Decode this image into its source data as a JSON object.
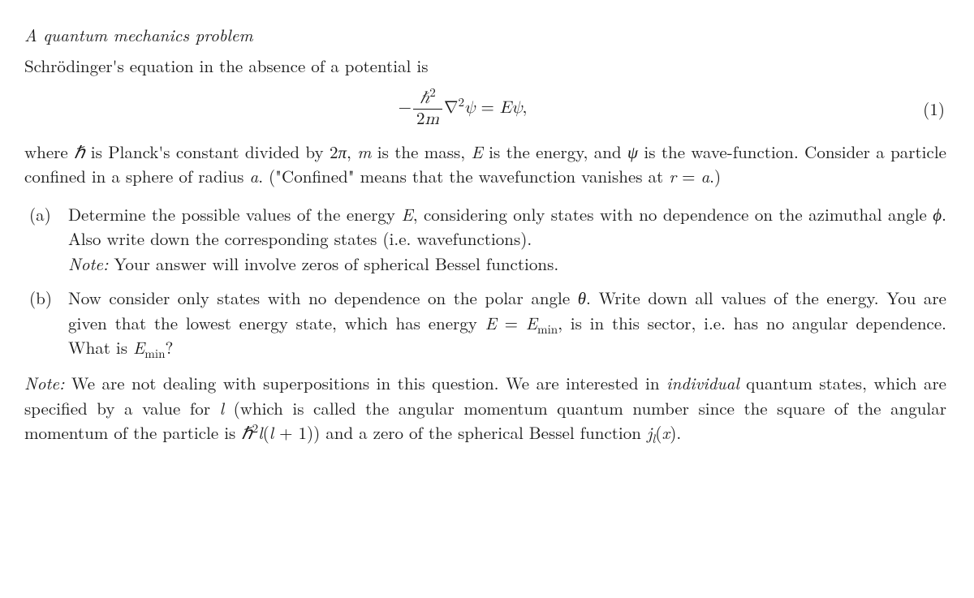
{
  "title": "A quantum mechanics problem",
  "intro": "Schrödinger's equation in the absence of a potential is",
  "equation_number": "(1)",
  "eq": {
    "minus": "−",
    "hbar_sq": "ℏ",
    "two_m": "2",
    "m": "m",
    "nabla": "∇",
    "psi": "ψ",
    "eq_sign": " = ",
    "E": "E",
    "comma": ","
  },
  "after_eq_parts": {
    "t1": "where ",
    "hbar": "ℏ",
    "t2": " is Planck's constant divided by 2",
    "pi": "π",
    "t3": ", ",
    "m": "m",
    "t4": " is the mass, ",
    "E": "E",
    "t5": " is the energy, and ",
    "psi": "ψ",
    "t6": " is the wave-function.  Consider a particle confined in a sphere of radius ",
    "a": "a",
    "t7": ".  (\"Confined\" means that the wavefunction vanishes at ",
    "r": "r",
    "eq": " = ",
    "a2": "a",
    "t8": ".)"
  },
  "items": {
    "a_label": "(a)",
    "a_body_1": "Determine the possible values of the energy ",
    "a_E": "E",
    "a_body_2": ", considering only states with no dependence on the azimuthal angle ",
    "a_phi": "ϕ",
    "a_body_3": ". Also write down the corresponding states (i.e. wavefunctions).",
    "a_note_label": "Note:",
    "a_note_body": " Your answer will involve zeros of spherical Bessel functions.",
    "b_label": "(b)",
    "b_body_1": "Now consider only states with no dependence on the polar angle ",
    "b_theta": "θ",
    "b_body_2": ". Write down all values of the energy. You are given that the lowest energy state, which has energy ",
    "b_E": "E",
    "b_eq": " = ",
    "b_Emin_E": "E",
    "b_Emin_sub": "min",
    "b_body_3": ", is in this sector, i.e. has no angular dependence. What is ",
    "b_Emin2_E": "E",
    "b_Emin2_sub": "min",
    "b_body_4": "?"
  },
  "final": {
    "note_label": "Note:",
    "t1": "  We are not dealing with superpositions in this question.  We are interested in ",
    "individual": "individual",
    "t2": " quantum states, which are specified by a value for ",
    "l": "l",
    "t3": " (which is called the angular momentum quantum number since the square of the angular momentum of the particle is ",
    "hbar": "ℏ",
    "l2": "l",
    "lparen": "(",
    "l3": "l",
    "plus1": " + 1)",
    "t4": ") and a zero of the spherical Bessel function ",
    "j": "j",
    "jl": "l",
    "x": "x",
    "t5": "."
  }
}
